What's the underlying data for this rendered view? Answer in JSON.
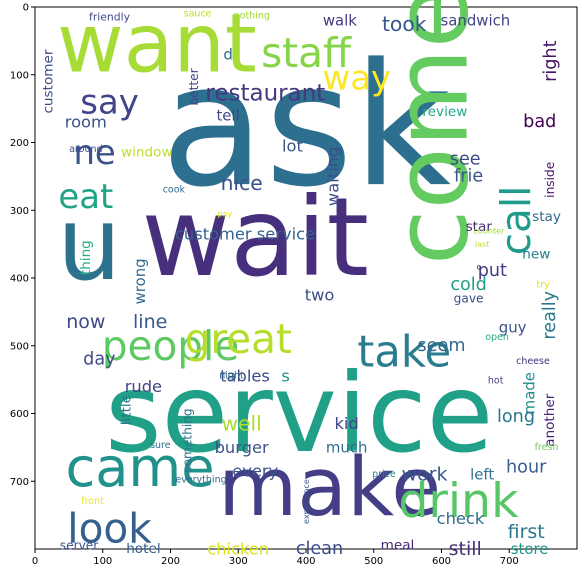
{
  "chart_data": {
    "type": "wordcloud",
    "title": "",
    "xlabel": "",
    "ylabel": "",
    "xlim": [
      0,
      800
    ],
    "ylim": [
      800,
      0
    ],
    "xticks": [
      "0",
      "100",
      "200",
      "300",
      "400",
      "500",
      "600",
      "700"
    ],
    "yticks": [
      "0",
      "100",
      "200",
      "300",
      "400",
      "500",
      "600",
      "700"
    ],
    "words": [
      {
        "text": "ask",
        "x": 400,
        "y": 175,
        "size": 250,
        "color": "#2c6f8e",
        "rot": 0
      },
      {
        "text": "wait",
        "x": 325,
        "y": 340,
        "size": 160,
        "color": "#472f7d",
        "rot": 0
      },
      {
        "text": "service",
        "x": 390,
        "y": 600,
        "size": 160,
        "color": "#1fa087",
        "rot": 0
      },
      {
        "text": "want",
        "x": 180,
        "y": 55,
        "size": 120,
        "color": "#a7db36",
        "rot": 0
      },
      {
        "text": "come",
        "x": 585,
        "y": 175,
        "size": 150,
        "color": "#63cb5f",
        "rot": 90
      },
      {
        "text": "make",
        "x": 435,
        "y": 710,
        "size": 120,
        "color": "#433e85",
        "rot": 0
      },
      {
        "text": "u",
        "x": 80,
        "y": 350,
        "size": 150,
        "color": "#2c728e",
        "rot": 0
      },
      {
        "text": "came",
        "x": 155,
        "y": 680,
        "size": 80,
        "color": "#21918c",
        "rot": 0
      },
      {
        "text": "drink",
        "x": 625,
        "y": 730,
        "size": 70,
        "color": "#56c667",
        "rot": 0
      },
      {
        "text": "staff",
        "x": 400,
        "y": 68,
        "size": 60,
        "color": "#86d549",
        "rot": 0
      },
      {
        "text": "take",
        "x": 545,
        "y": 510,
        "size": 64,
        "color": "#287d8e",
        "rot": 0
      },
      {
        "text": "people",
        "x": 200,
        "y": 500,
        "size": 60,
        "color": "#5ec962",
        "rot": 0
      },
      {
        "text": "great",
        "x": 300,
        "y": 490,
        "size": 60,
        "color": "#b5de2b",
        "rot": 0
      },
      {
        "text": "look",
        "x": 110,
        "y": 770,
        "size": 60,
        "color": "#35608d",
        "rot": 0
      },
      {
        "text": "call",
        "x": 710,
        "y": 315,
        "size": 60,
        "color": "#1e9b8a",
        "rot": 90
      },
      {
        "text": "say",
        "x": 110,
        "y": 140,
        "size": 50,
        "color": "#414487",
        "rot": 0
      },
      {
        "text": "way",
        "x": 475,
        "y": 105,
        "size": 50,
        "color": "#fde725",
        "rot": 0
      },
      {
        "text": "eat",
        "x": 75,
        "y": 280,
        "size": 50,
        "color": "#20a386",
        "rot": 0
      },
      {
        "text": "ne",
        "x": 88,
        "y": 215,
        "size": 50,
        "color": "#3b528b",
        "rot": 0
      },
      {
        "text": "restaurant",
        "x": 340,
        "y": 128,
        "size": 34,
        "color": "#453781",
        "rot": 0
      },
      {
        "text": "customer service",
        "x": 310,
        "y": 335,
        "size": 24,
        "color": "#33638d",
        "rot": 0
      },
      {
        "text": "first",
        "x": 725,
        "y": 775,
        "size": 28,
        "color": "#2a788e",
        "rot": 0
      },
      {
        "text": "still",
        "x": 635,
        "y": 800,
        "size": 28,
        "color": "#46327e",
        "rot": 0
      },
      {
        "text": "clean",
        "x": 420,
        "y": 800,
        "size": 26,
        "color": "#3e4a89",
        "rot": 0
      },
      {
        "text": "chicken",
        "x": 300,
        "y": 800,
        "size": 24,
        "color": "#d8e219",
        "rot": 0
      },
      {
        "text": "hotel",
        "x": 160,
        "y": 800,
        "size": 20,
        "color": "#355f8d",
        "rot": 0
      },
      {
        "text": "server",
        "x": 65,
        "y": 795,
        "size": 18,
        "color": "#3b528b",
        "rot": 0
      },
      {
        "text": "meal",
        "x": 535,
        "y": 795,
        "size": 20,
        "color": "#482878",
        "rot": 0
      },
      {
        "text": "store",
        "x": 730,
        "y": 800,
        "size": 22,
        "color": "#1f968b",
        "rot": 0
      },
      {
        "text": "check",
        "x": 628,
        "y": 755,
        "size": 24,
        "color": "#2e6e8e",
        "rot": 0
      },
      {
        "text": "took",
        "x": 545,
        "y": 25,
        "size": 30,
        "color": "#38588c",
        "rot": 0
      },
      {
        "text": "walk",
        "x": 450,
        "y": 20,
        "size": 22,
        "color": "#443983",
        "rot": 0
      },
      {
        "text": "sandwich",
        "x": 650,
        "y": 20,
        "size": 22,
        "color": "#414487",
        "rot": 0
      },
      {
        "text": "friendly",
        "x": 110,
        "y": 15,
        "size": 16,
        "color": "#3f4788",
        "rot": 0
      },
      {
        "text": "sauce",
        "x": 240,
        "y": 10,
        "size": 14,
        "color": "#c2df23",
        "rot": 0
      },
      {
        "text": "nothing",
        "x": 320,
        "y": 13,
        "size": 14,
        "color": "#a0da39",
        "rot": 0
      },
      {
        "text": "right",
        "x": 762,
        "y": 80,
        "size": 26,
        "color": "#471365",
        "rot": 90
      },
      {
        "text": "bad",
        "x": 745,
        "y": 170,
        "size": 26,
        "color": "#440154",
        "rot": 0
      },
      {
        "text": "review",
        "x": 605,
        "y": 155,
        "size": 20,
        "color": "#21a685",
        "rot": 0
      },
      {
        "text": "inside",
        "x": 760,
        "y": 255,
        "size": 18,
        "color": "#48186a",
        "rot": 90
      },
      {
        "text": "see",
        "x": 635,
        "y": 225,
        "size": 26,
        "color": "#3e4c8a",
        "rot": 0
      },
      {
        "text": "frie",
        "x": 640,
        "y": 250,
        "size": 26,
        "color": "#39568c",
        "rot": 0
      },
      {
        "text": "stay",
        "x": 755,
        "y": 310,
        "size": 20,
        "color": "#31688e",
        "rot": 0
      },
      {
        "text": "star",
        "x": 655,
        "y": 325,
        "size": 20,
        "color": "#482475",
        "rot": 0
      },
      {
        "text": "counter",
        "x": 670,
        "y": 330,
        "size": 12,
        "color": "#9fda3a",
        "rot": 0
      },
      {
        "text": "new",
        "x": 740,
        "y": 365,
        "size": 20,
        "color": "#277f8e",
        "rot": 0
      },
      {
        "text": "put",
        "x": 675,
        "y": 390,
        "size": 26,
        "color": "#443983",
        "rot": 0
      },
      {
        "text": "cold",
        "x": 640,
        "y": 410,
        "size": 26,
        "color": "#1f9f88",
        "rot": 0
      },
      {
        "text": "gave",
        "x": 640,
        "y": 430,
        "size": 18,
        "color": "#3d4e8a",
        "rot": 0
      },
      {
        "text": "try",
        "x": 750,
        "y": 410,
        "size": 14,
        "color": "#e2e418",
        "rot": 0
      },
      {
        "text": "last",
        "x": 660,
        "y": 350,
        "size": 12,
        "color": "#bddf26",
        "rot": 0
      },
      {
        "text": "c",
        "x": 655,
        "y": 383,
        "size": 12,
        "color": "#440154",
        "rot": 0
      },
      {
        "text": "really",
        "x": 760,
        "y": 455,
        "size": 26,
        "color": "#29798e",
        "rot": 90
      },
      {
        "text": "guy",
        "x": 705,
        "y": 473,
        "size": 22,
        "color": "#3b528b",
        "rot": 0
      },
      {
        "text": "open",
        "x": 682,
        "y": 488,
        "size": 14,
        "color": "#26ad81",
        "rot": 0
      },
      {
        "text": "seem",
        "x": 600,
        "y": 500,
        "size": 26,
        "color": "#31688e",
        "rot": 0
      },
      {
        "text": "cheese",
        "x": 735,
        "y": 523,
        "size": 14,
        "color": "#46317e",
        "rot": 0
      },
      {
        "text": "made",
        "x": 730,
        "y": 570,
        "size": 22,
        "color": "#228c8d",
        "rot": 90
      },
      {
        "text": "another",
        "x": 760,
        "y": 610,
        "size": 20,
        "color": "#482576",
        "rot": 90
      },
      {
        "text": "hot",
        "x": 680,
        "y": 552,
        "size": 14,
        "color": "#414487",
        "rot": 0
      },
      {
        "text": "long",
        "x": 710,
        "y": 605,
        "size": 26,
        "color": "#2a778e",
        "rot": 0
      },
      {
        "text": "fresh",
        "x": 755,
        "y": 650,
        "size": 14,
        "color": "#6ccd5a",
        "rot": 0
      },
      {
        "text": "hour",
        "x": 725,
        "y": 680,
        "size": 26,
        "color": "#355e8d",
        "rot": 0
      },
      {
        "text": "work",
        "x": 575,
        "y": 690,
        "size": 28,
        "color": "#38598c",
        "rot": 0
      },
      {
        "text": "left",
        "x": 660,
        "y": 690,
        "size": 22,
        "color": "#2b758e",
        "rot": 0
      },
      {
        "text": "price",
        "x": 515,
        "y": 690,
        "size": 14,
        "color": "#23898e",
        "rot": 0
      },
      {
        "text": "much",
        "x": 460,
        "y": 650,
        "size": 22,
        "color": "#2d708e",
        "rot": 0
      },
      {
        "text": "kid",
        "x": 460,
        "y": 615,
        "size": 24,
        "color": "#3f4788",
        "rot": 0
      },
      {
        "text": "sure",
        "x": 185,
        "y": 647,
        "size": 14,
        "color": "#2d708e",
        "rot": 0
      },
      {
        "text": "well",
        "x": 305,
        "y": 615,
        "size": 30,
        "color": "#addc30",
        "rot": 0
      },
      {
        "text": "burger",
        "x": 305,
        "y": 650,
        "size": 24,
        "color": "#3b528b",
        "rot": 0
      },
      {
        "text": "every",
        "x": 325,
        "y": 685,
        "size": 24,
        "color": "#3b528b",
        "rot": 0
      },
      {
        "text": "everything",
        "x": 245,
        "y": 698,
        "size": 14,
        "color": "#31688e",
        "rot": 0
      },
      {
        "text": "something",
        "x": 225,
        "y": 640,
        "size": 18,
        "color": "#2b758e",
        "rot": 90
      },
      {
        "text": "experience",
        "x": 400,
        "y": 730,
        "size": 12,
        "color": "#3b528b",
        "rot": 90
      },
      {
        "text": "front",
        "x": 85,
        "y": 730,
        "size": 14,
        "color": "#f1e51d",
        "rot": 0
      },
      {
        "text": "tables",
        "x": 310,
        "y": 545,
        "size": 24,
        "color": "#3e4c8a",
        "rot": 0
      },
      {
        "text": "s",
        "x": 370,
        "y": 545,
        "size": 24,
        "color": "#21918c",
        "rot": 0
      },
      {
        "text": "night",
        "x": 290,
        "y": 545,
        "size": 14,
        "color": "#2f6b8e",
        "rot": 0
      },
      {
        "text": "rude",
        "x": 160,
        "y": 560,
        "size": 24,
        "color": "#404688",
        "rot": 0
      },
      {
        "text": "little",
        "x": 135,
        "y": 595,
        "size": 20,
        "color": "#2b758e",
        "rot": 90
      },
      {
        "text": "day",
        "x": 95,
        "y": 520,
        "size": 26,
        "color": "#3e4a89",
        "rot": 0
      },
      {
        "text": "now",
        "x": 75,
        "y": 465,
        "size": 28,
        "color": "#3f4788",
        "rot": 0
      },
      {
        "text": "line",
        "x": 170,
        "y": 465,
        "size": 28,
        "color": "#38598c",
        "rot": 0
      },
      {
        "text": "wrong",
        "x": 155,
        "y": 405,
        "size": 22,
        "color": "#2f6b8e",
        "rot": 90
      },
      {
        "text": "two",
        "x": 420,
        "y": 425,
        "size": 24,
        "color": "#3e4c8a",
        "rot": 0
      },
      {
        "text": "thing",
        "x": 75,
        "y": 370,
        "size": 20,
        "color": "#26ad81",
        "rot": 90
      },
      {
        "text": "pay",
        "x": 280,
        "y": 305,
        "size": 12,
        "color": "#d8e219",
        "rot": 0
      },
      {
        "text": "cook",
        "x": 205,
        "y": 270,
        "size": 14,
        "color": "#2f6b8e",
        "rot": 0
      },
      {
        "text": "nice",
        "x": 305,
        "y": 260,
        "size": 30,
        "color": "#3b528b",
        "rot": 0
      },
      {
        "text": "lot",
        "x": 380,
        "y": 205,
        "size": 24,
        "color": "#3b528b",
        "rot": 0
      },
      {
        "text": "waiting",
        "x": 440,
        "y": 250,
        "size": 24,
        "color": "#3e4c8a",
        "rot": 90
      },
      {
        "text": "window",
        "x": 165,
        "y": 215,
        "size": 20,
        "color": "#bddf26",
        "rot": 0
      },
      {
        "text": "around",
        "x": 75,
        "y": 210,
        "size": 14,
        "color": "#3f4788",
        "rot": 0
      },
      {
        "text": "room",
        "x": 75,
        "y": 170,
        "size": 24,
        "color": "#3b528b",
        "rot": 0
      },
      {
        "text": "customer",
        "x": 20,
        "y": 110,
        "size": 20,
        "color": "#3e4c8a",
        "rot": 90
      },
      {
        "text": "better",
        "x": 235,
        "y": 118,
        "size": 18,
        "color": "#414487",
        "rot": 90
      },
      {
        "text": "tell",
        "x": 285,
        "y": 160,
        "size": 22,
        "color": "#3f4788",
        "rot": 0
      },
      {
        "text": "d",
        "x": 285,
        "y": 70,
        "size": 22,
        "color": "#31688e",
        "rot": 0
      }
    ]
  }
}
